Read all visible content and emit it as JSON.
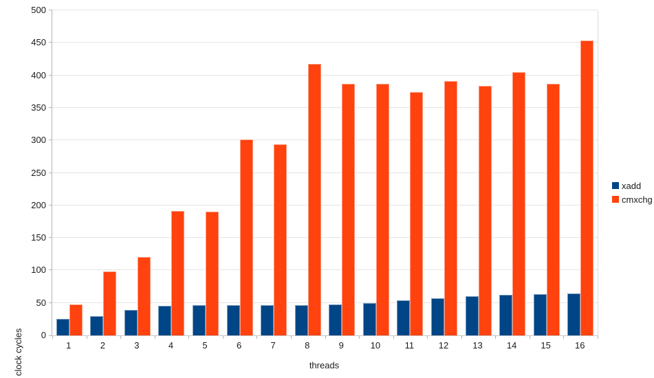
{
  "chart_data": {
    "type": "bar",
    "title": "",
    "xlabel": "threads",
    "ylabel": "clock cycles",
    "categories": [
      "1",
      "2",
      "3",
      "4",
      "5",
      "6",
      "7",
      "8",
      "9",
      "10",
      "11",
      "12",
      "13",
      "14",
      "15",
      "16"
    ],
    "series": [
      {
        "name": "xadd",
        "color": "#004586",
        "values": [
          25,
          30,
          39,
          45,
          46,
          47,
          46,
          46,
          48,
          50,
          54,
          57,
          60,
          62,
          63,
          65
        ]
      },
      {
        "name": "cmxchg",
        "color": "#ff420e",
        "values": [
          48,
          98,
          121,
          191,
          190,
          301,
          294,
          418,
          387,
          387,
          374,
          391,
          384,
          405,
          387,
          454
        ]
      }
    ],
    "ylim": [
      0,
      500
    ],
    "yticks": [
      0,
      50,
      100,
      150,
      200,
      250,
      300,
      350,
      400,
      450,
      500
    ],
    "grid": true,
    "legend_position": "right",
    "legend_items": [
      {
        "label": "xadd",
        "color": "#004586"
      },
      {
        "label": "cmxchg",
        "color": "#ff420e"
      }
    ]
  },
  "colors": {
    "background": "#ffffff",
    "gridline": "#e4e4e4",
    "axis": "#b3b3b3",
    "text": "#1a1a1a",
    "series_xadd": "#004586",
    "series_cmxchg": "#ff420e"
  }
}
